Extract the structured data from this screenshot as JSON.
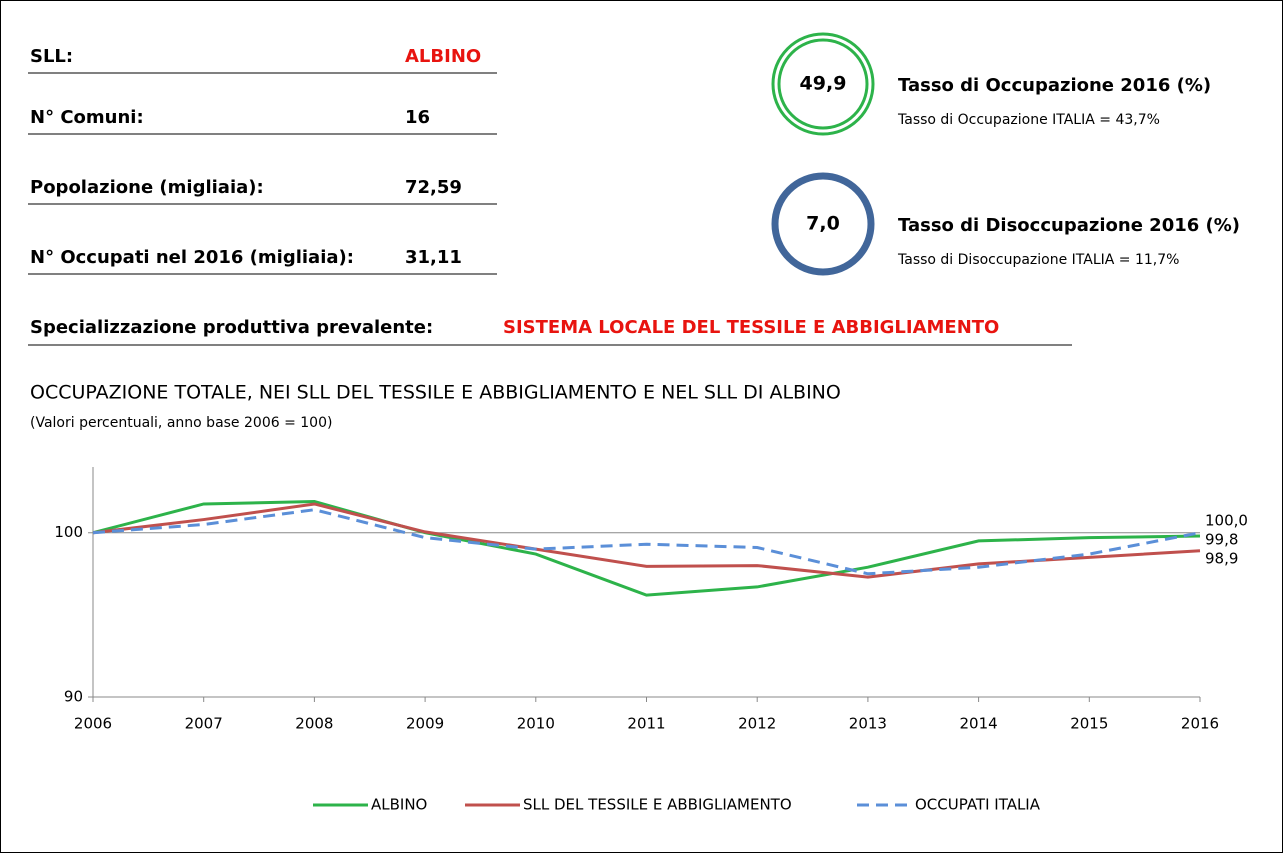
{
  "info": {
    "rows": [
      {
        "label": "SLL:",
        "value": "ALBINO"
      },
      {
        "label": "N° Comuni:",
        "value": "16"
      },
      {
        "label": "Popolazione (migliaia):",
        "value": "72,59"
      },
      {
        "label": "N° Occupati nel 2016 (migliaia):",
        "value": "31,11"
      }
    ],
    "specialization": {
      "label": "Specializzazione produttiva prevalente:",
      "value": "SISTEMA LOCALE DEL TESSILE E ABBIGLIAMENTO"
    }
  },
  "indicators": [
    {
      "value": "49,9",
      "title": "Tasso di Occupazione 2016 (%)",
      "note": "Tasso di Occupazione ITALIA = 43,7%",
      "color": "#2db34a"
    },
    {
      "value": "7,0",
      "title": "Tasso di Disoccupazione 2016 (%)",
      "note": "Tasso di Disoccupazione ITALIA = 11,7%",
      "color": "#41669a"
    }
  ],
  "chart_data": {
    "type": "line",
    "title": "OCCUPAZIONE TOTALE, NEI SLL DEL TESSILE E ABBIGLIAMENTO E NEL SLL DI ALBINO",
    "subtitle": "(Valori percentuali, anno base 2006 = 100)",
    "categories": [
      "2006",
      "2007",
      "2008",
      "2009",
      "2010",
      "2011",
      "2012",
      "2013",
      "2014",
      "2015",
      "2016"
    ],
    "series": [
      {
        "name": "ALBINO",
        "color": "#2db34a",
        "dashed": false,
        "values": [
          100,
          101.75,
          101.9,
          100,
          98.7,
          96.2,
          96.7,
          97.9,
          99.5,
          99.7,
          99.8
        ],
        "value_labels": [
          null,
          null,
          null,
          null,
          null,
          null,
          null,
          null,
          null,
          null,
          "99,8"
        ]
      },
      {
        "name": "SLL DEL TESSILE E ABBIGLIAMENTO",
        "color": "#c0504d",
        "dashed": false,
        "values": [
          100,
          100.8,
          101.75,
          100.05,
          99,
          97.95,
          98,
          97.3,
          98.1,
          98.5,
          98.9
        ],
        "value_labels": [
          null,
          null,
          null,
          null,
          null,
          null,
          null,
          null,
          null,
          null,
          "98,9"
        ]
      },
      {
        "name": "OCCUPATI ITALIA",
        "color": "#5b8fd8",
        "dashed": true,
        "values": [
          100,
          100.5,
          101.4,
          99.7,
          99,
          99.3,
          99.1,
          97.5,
          97.9,
          98.7,
          100
        ],
        "value_labels": [
          null,
          null,
          null,
          null,
          null,
          null,
          null,
          null,
          null,
          null,
          "100,0"
        ]
      }
    ],
    "ylim": [
      90,
      104
    ],
    "yticks": [
      90,
      100
    ],
    "grid": true,
    "legend": "bottom"
  }
}
